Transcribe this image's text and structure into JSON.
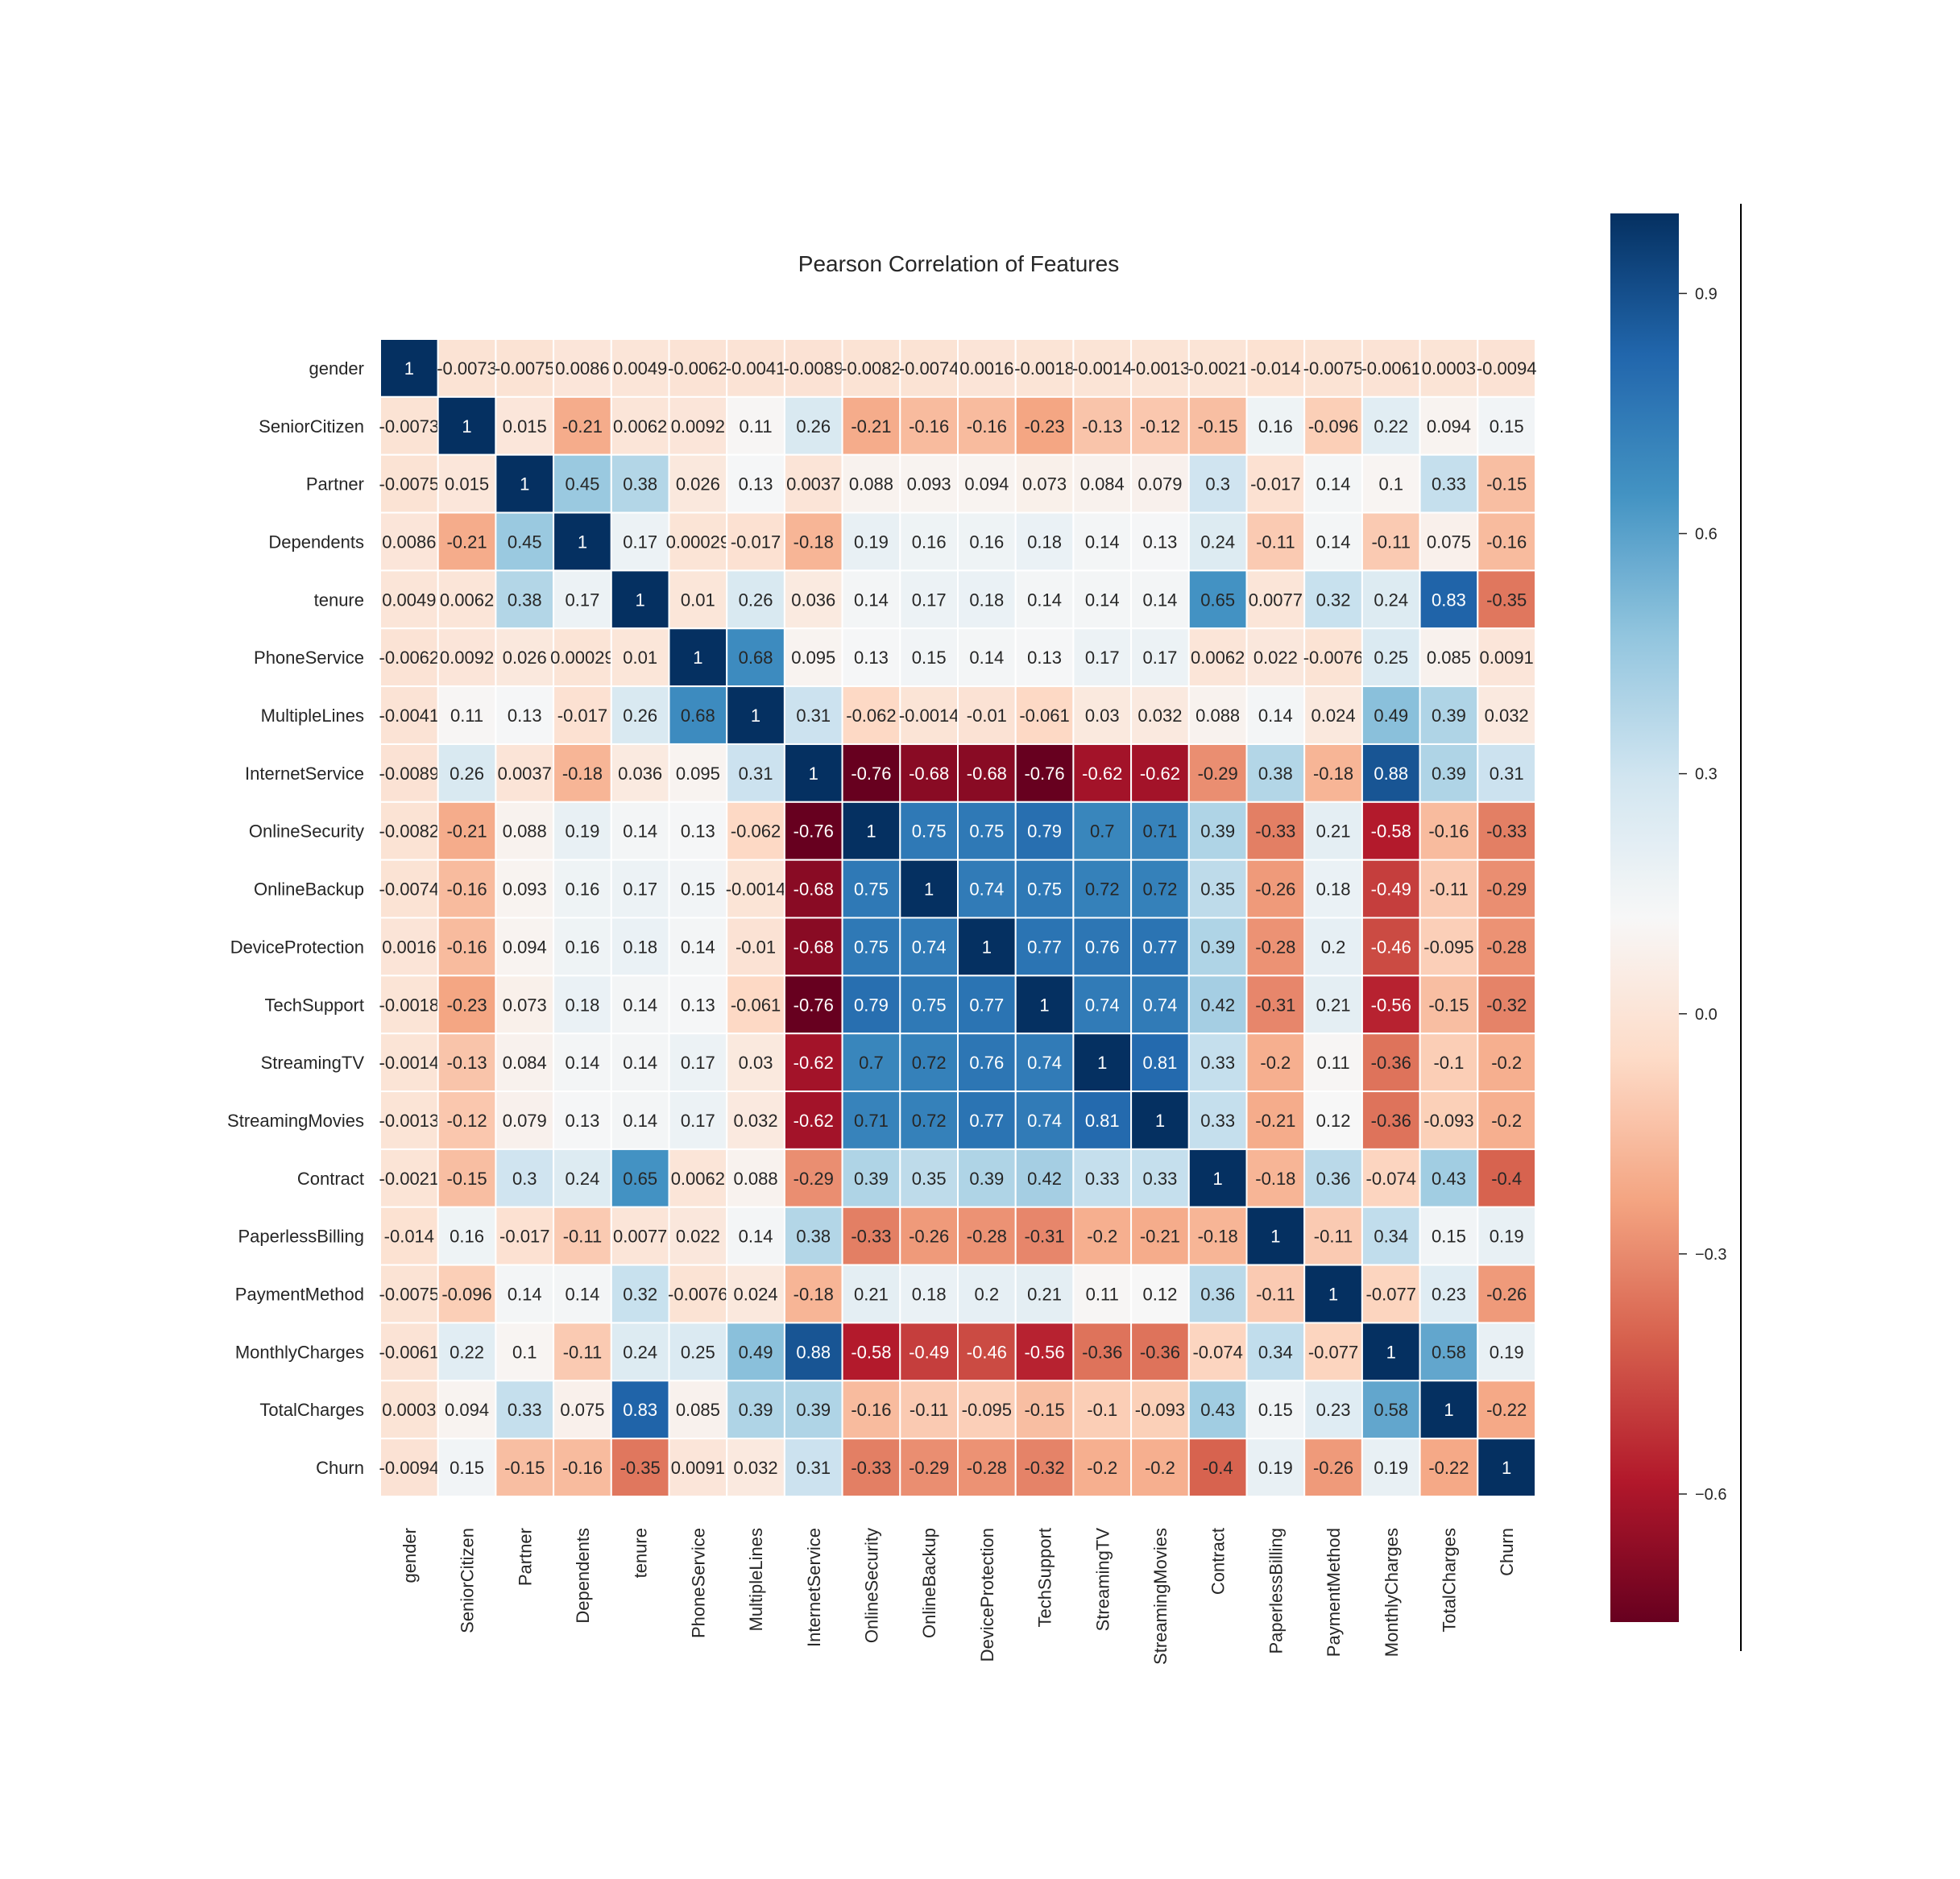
{
  "chart_data": {
    "type": "heatmap",
    "title": "Pearson Correlation of Features",
    "colormap": "RdBu",
    "vmin": -0.76,
    "vmax": 1,
    "colorbar_ticks": [
      "0.9",
      "0.6",
      "0.3",
      "0.0",
      "−0.3",
      "−0.6"
    ],
    "colorbar_tick_values": [
      0.9,
      0.6,
      0.3,
      0.0,
      -0.3,
      -0.6
    ],
    "labels": [
      "gender",
      "SeniorCitizen",
      "Partner",
      "Dependents",
      "tenure",
      "PhoneService",
      "MultipleLines",
      "InternetService",
      "OnlineSecurity",
      "OnlineBackup",
      "DeviceProtection",
      "TechSupport",
      "StreamingTV",
      "StreamingMovies",
      "Contract",
      "PaperlessBilling",
      "PaymentMethod",
      "MonthlyCharges",
      "TotalCharges",
      "Churn"
    ],
    "matrix": [
      [
        1,
        -0.0073,
        -0.0075,
        0.0086,
        0.0049,
        -0.0062,
        -0.0041,
        -0.0089,
        -0.0082,
        -0.0074,
        0.0016,
        -0.0018,
        -0.0014,
        -0.0013,
        -0.0021,
        -0.014,
        -0.0075,
        -0.0061,
        0.0003,
        -0.0094
      ],
      [
        -0.0073,
        1,
        0.015,
        -0.21,
        0.0062,
        0.0092,
        0.11,
        0.26,
        -0.21,
        -0.16,
        -0.16,
        -0.23,
        -0.13,
        -0.12,
        -0.15,
        0.16,
        -0.096,
        0.22,
        0.094,
        0.15
      ],
      [
        -0.0075,
        0.015,
        1,
        0.45,
        0.38,
        0.026,
        0.13,
        0.0037,
        0.088,
        0.093,
        0.094,
        0.073,
        0.084,
        0.079,
        0.3,
        -0.017,
        0.14,
        0.1,
        0.33,
        -0.15
      ],
      [
        0.0086,
        -0.21,
        0.45,
        1,
        0.17,
        0.00029,
        -0.017,
        -0.18,
        0.19,
        0.16,
        0.16,
        0.18,
        0.14,
        0.13,
        0.24,
        -0.11,
        0.14,
        -0.11,
        0.075,
        -0.16
      ],
      [
        0.0049,
        0.0062,
        0.38,
        0.17,
        1,
        0.01,
        0.26,
        0.036,
        0.14,
        0.17,
        0.18,
        0.14,
        0.14,
        0.14,
        0.65,
        0.0077,
        0.32,
        0.24,
        0.83,
        -0.35
      ],
      [
        -0.0062,
        0.0092,
        0.026,
        0.00029,
        0.01,
        1,
        0.68,
        0.095,
        0.13,
        0.15,
        0.14,
        0.13,
        0.17,
        0.17,
        0.0062,
        0.022,
        -0.0076,
        0.25,
        0.085,
        0.0091
      ],
      [
        -0.0041,
        0.11,
        0.13,
        -0.017,
        0.26,
        0.68,
        1,
        0.31,
        -0.062,
        -0.0014,
        -0.01,
        -0.061,
        0.03,
        0.032,
        0.088,
        0.14,
        0.024,
        0.49,
        0.39,
        0.032
      ],
      [
        -0.0089,
        0.26,
        0.0037,
        -0.18,
        0.036,
        0.095,
        0.31,
        1,
        -0.76,
        -0.68,
        -0.68,
        -0.76,
        -0.62,
        -0.62,
        -0.29,
        0.38,
        -0.18,
        0.88,
        0.39,
        0.31
      ],
      [
        -0.0082,
        -0.21,
        0.088,
        0.19,
        0.14,
        0.13,
        -0.062,
        -0.76,
        1,
        0.75,
        0.75,
        0.79,
        0.7,
        0.71,
        0.39,
        -0.33,
        0.21,
        -0.58,
        -0.16,
        -0.33
      ],
      [
        -0.0074,
        -0.16,
        0.093,
        0.16,
        0.17,
        0.15,
        -0.0014,
        -0.68,
        0.75,
        1,
        0.74,
        0.75,
        0.72,
        0.72,
        0.35,
        -0.26,
        0.18,
        -0.49,
        -0.11,
        -0.29
      ],
      [
        0.0016,
        -0.16,
        0.094,
        0.16,
        0.18,
        0.14,
        -0.01,
        -0.68,
        0.75,
        0.74,
        1,
        0.77,
        0.76,
        0.77,
        0.39,
        -0.28,
        0.2,
        -0.46,
        -0.095,
        -0.28
      ],
      [
        -0.0018,
        -0.23,
        0.073,
        0.18,
        0.14,
        0.13,
        -0.061,
        -0.76,
        0.79,
        0.75,
        0.77,
        1,
        0.74,
        0.74,
        0.42,
        -0.31,
        0.21,
        -0.56,
        -0.15,
        -0.32
      ],
      [
        -0.0014,
        -0.13,
        0.084,
        0.14,
        0.14,
        0.17,
        0.03,
        -0.62,
        0.7,
        0.72,
        0.76,
        0.74,
        1,
        0.81,
        0.33,
        -0.2,
        0.11,
        -0.36,
        -0.1,
        -0.2
      ],
      [
        -0.0013,
        -0.12,
        0.079,
        0.13,
        0.14,
        0.17,
        0.032,
        -0.62,
        0.71,
        0.72,
        0.77,
        0.74,
        0.81,
        1,
        0.33,
        -0.21,
        0.12,
        -0.36,
        -0.093,
        -0.2
      ],
      [
        -0.0021,
        -0.15,
        0.3,
        0.24,
        0.65,
        0.0062,
        0.088,
        -0.29,
        0.39,
        0.35,
        0.39,
        0.42,
        0.33,
        0.33,
        1,
        -0.18,
        0.36,
        -0.074,
        0.43,
        -0.4
      ],
      [
        -0.014,
        0.16,
        -0.017,
        -0.11,
        0.0077,
        0.022,
        0.14,
        0.38,
        -0.33,
        -0.26,
        -0.28,
        -0.31,
        -0.2,
        -0.21,
        -0.18,
        1,
        -0.11,
        0.34,
        0.15,
        0.19
      ],
      [
        -0.0075,
        -0.096,
        0.14,
        0.14,
        0.32,
        -0.0076,
        0.024,
        -0.18,
        0.21,
        0.18,
        0.2,
        0.21,
        0.11,
        0.12,
        0.36,
        -0.11,
        1,
        -0.077,
        0.23,
        -0.26
      ],
      [
        -0.0061,
        0.22,
        0.1,
        -0.11,
        0.24,
        0.25,
        0.49,
        0.88,
        -0.58,
        -0.49,
        -0.46,
        -0.56,
        -0.36,
        -0.36,
        -0.074,
        0.34,
        -0.077,
        1,
        0.58,
        0.19
      ],
      [
        0.0003,
        0.094,
        0.33,
        0.075,
        0.83,
        0.085,
        0.39,
        0.39,
        -0.16,
        -0.11,
        -0.095,
        -0.15,
        -0.1,
        -0.093,
        0.43,
        0.15,
        0.23,
        0.58,
        1,
        -0.22
      ],
      [
        -0.0094,
        0.15,
        -0.15,
        -0.16,
        -0.35,
        0.0091,
        0.032,
        0.31,
        -0.33,
        -0.29,
        -0.28,
        -0.32,
        -0.2,
        -0.2,
        -0.4,
        0.19,
        -0.26,
        0.19,
        -0.22,
        1
      ]
    ],
    "annotated": true,
    "legend": "colorbar-right"
  }
}
